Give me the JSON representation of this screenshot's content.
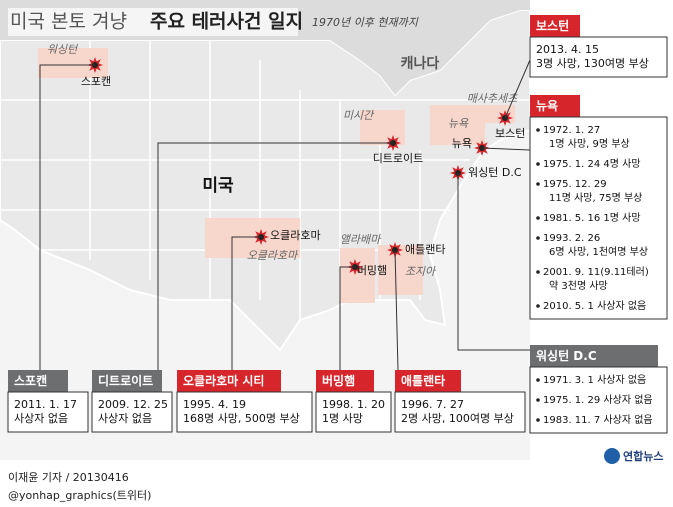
{
  "title": {
    "prefix": "미국 본토 겨냥",
    "main": "주요 테러사건 일지"
  },
  "subtitle": "1970년 이후 현재까지",
  "region_labels": [
    "캐나다",
    "미국",
    "워싱턴",
    "미시간",
    "뉴욕",
    "매사추세츠",
    "오클라호마",
    "앨라배마",
    "조지아"
  ],
  "city_labels": [
    "스포캔",
    "디트로이트",
    "보스턴",
    "뉴욕",
    "워싱턴 D.C",
    "오클라호마",
    "버밍햄",
    "애틀랜타"
  ],
  "events": [
    {
      "place": "보스턴",
      "color": "#d7262b",
      "entries": [
        [
          "2013. 4. 15",
          "3명 사망, 130여명 부상"
        ]
      ]
    },
    {
      "place": "뉴욕",
      "color": "#d7262b",
      "entries": [
        [
          "1972. 1. 27",
          "1명 사망, 9명 부상"
        ],
        [
          "1975. 1. 24  4명 사망"
        ],
        [
          "1975. 12. 29",
          "11명 사망, 75명 부상"
        ],
        [
          "1981. 5. 16  1명 사망"
        ],
        [
          "1993. 2. 26",
          "6명 사망, 1천여명 부상"
        ],
        [
          "2001. 9. 11(9.11테러)",
          "약 3천명 사망"
        ],
        [
          "2010. 5. 1  사상자 없음"
        ]
      ]
    },
    {
      "place": "워싱턴 D.C",
      "color": "#6d6e70",
      "entries": [
        [
          "1971. 3. 1 사상자 없음"
        ],
        [
          "1975. 1. 29 사상자 없음"
        ],
        [
          "1983. 11. 7 사상자 없음"
        ]
      ]
    },
    {
      "place": "스포캔",
      "color": "#6d6e70",
      "entries": [
        [
          "2011. 1. 17",
          "사상자 없음"
        ]
      ]
    },
    {
      "place": "디트로이트",
      "color": "#6d6e70",
      "entries": [
        [
          "2009. 12. 25",
          "사상자 없음"
        ]
      ]
    },
    {
      "place": "오클라호마 시티",
      "color": "#d7262b",
      "entries": [
        [
          "1995. 4. 19",
          "168명 사망, 500명 부상"
        ]
      ]
    },
    {
      "place": "버밍햄",
      "color": "#d7262b",
      "entries": [
        [
          "1998. 1. 20",
          "1명 사망"
        ]
      ]
    },
    {
      "place": "애틀랜타",
      "color": "#d7262b",
      "entries": [
        [
          "1996. 7. 27",
          "2명 사망, 100여명 부상"
        ]
      ]
    }
  ],
  "footer": [
    "이재윤 기자 / 20130416",
    "@yonhap_graphics(트위터)"
  ],
  "logo": "연합뉴스"
}
